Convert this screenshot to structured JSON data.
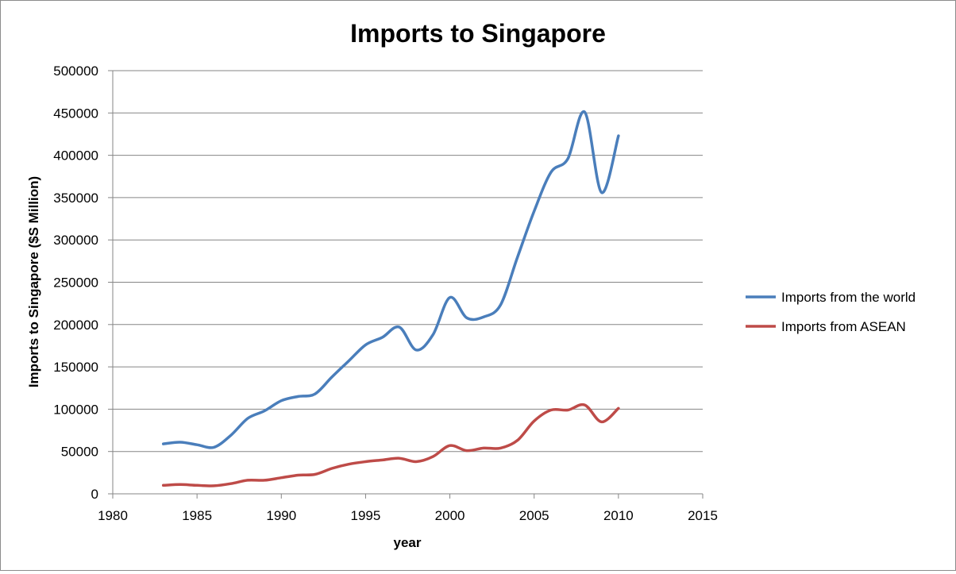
{
  "chart_data": {
    "type": "line",
    "smooth": true,
    "title": "Imports to Singapore",
    "xlabel": "year",
    "ylabel": "Imports to Singapore ($S Million)",
    "xlim": [
      1980,
      2015
    ],
    "ylim": [
      0,
      500000
    ],
    "x_ticks": [
      1980,
      1985,
      1990,
      1995,
      2000,
      2005,
      2010,
      2015
    ],
    "y_ticks": [
      0,
      50000,
      100000,
      150000,
      200000,
      250000,
      300000,
      350000,
      400000,
      450000,
      500000
    ],
    "grid": "horizontal",
    "legend_position": "right",
    "x": [
      1983,
      1984,
      1985,
      1986,
      1987,
      1988,
      1989,
      1990,
      1991,
      1992,
      1993,
      1994,
      1995,
      1996,
      1997,
      1998,
      1999,
      2000,
      2001,
      2002,
      2003,
      2004,
      2005,
      2006,
      2007,
      2008,
      2009,
      2010
    ],
    "series": [
      {
        "name": "Imports from the world",
        "color": "#4a7ebb",
        "values": [
          59000,
          61000,
          58000,
          55000,
          69000,
          89000,
          98000,
          110000,
          115000,
          118000,
          138000,
          157000,
          176000,
          185000,
          197000,
          170000,
          188000,
          232000,
          208000,
          209000,
          223000,
          279000,
          334000,
          380000,
          396000,
          451000,
          356000,
          423000
        ]
      },
      {
        "name": "Imports from ASEAN",
        "color": "#be4b48",
        "values": [
          10000,
          11000,
          10000,
          9500,
          12000,
          16000,
          16000,
          19000,
          22000,
          23000,
          30000,
          35000,
          38000,
          40000,
          42000,
          38000,
          44000,
          57000,
          51000,
          54000,
          54000,
          63000,
          86000,
          99000,
          99000,
          105000,
          85000,
          101000
        ]
      }
    ]
  }
}
